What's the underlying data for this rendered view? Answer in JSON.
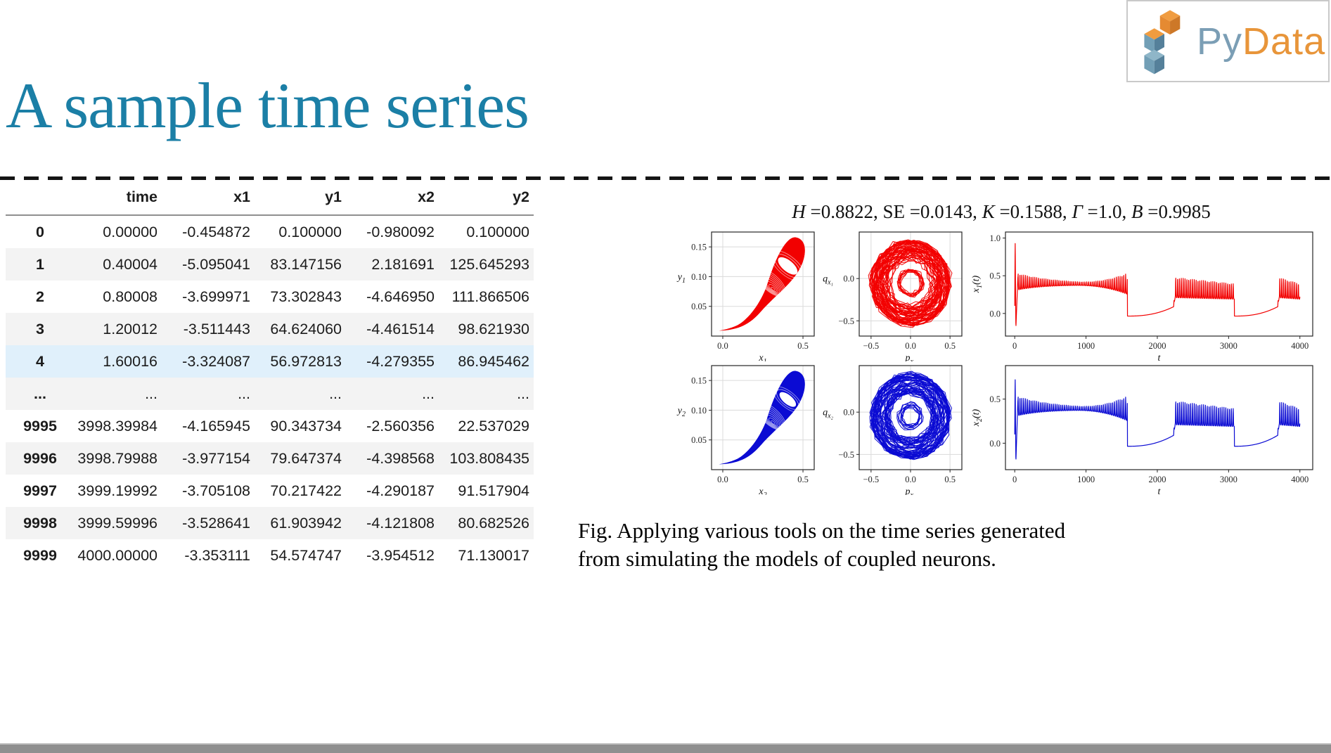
{
  "slide": {
    "title": "A sample time series",
    "logo": {
      "text_py": "Py",
      "text_data": "Data",
      "color_py": "#7b9eb5",
      "color_data": "#e8953a"
    }
  },
  "table": {
    "columns": [
      "",
      "time",
      "x1",
      "y1",
      "x2",
      "y2"
    ],
    "rows": [
      [
        "0",
        "0.00000",
        "-0.454872",
        "0.100000",
        "-0.980092",
        "0.100000"
      ],
      [
        "1",
        "0.40004",
        "-5.095041",
        "83.147156",
        "2.181691",
        "125.645293"
      ],
      [
        "2",
        "0.80008",
        "-3.699971",
        "73.302843",
        "-4.646950",
        "111.866506"
      ],
      [
        "3",
        "1.20012",
        "-3.511443",
        "64.624060",
        "-4.461514",
        "98.621930"
      ],
      [
        "4",
        "1.60016",
        "-3.324087",
        "56.972813",
        "-4.279355",
        "86.945462"
      ],
      [
        "...",
        "...",
        "...",
        "...",
        "...",
        "..."
      ],
      [
        "9995",
        "3998.39984",
        "-4.165945",
        "90.343734",
        "-2.560356",
        "22.537029"
      ],
      [
        "9996",
        "3998.79988",
        "-3.977154",
        "79.647374",
        "-4.398568",
        "103.808435"
      ],
      [
        "9997",
        "3999.19992",
        "-3.705108",
        "70.217422",
        "-4.290187",
        "91.517904"
      ],
      [
        "9998",
        "3999.59996",
        "-3.528641",
        "61.903942",
        "-4.121808",
        "80.682526"
      ],
      [
        "9999",
        "4000.00000",
        "-3.353111",
        "54.574747",
        "-3.954512",
        "71.130017"
      ]
    ],
    "highlighted_row": "4",
    "stripe_color": "#f3f3f3",
    "highlight_color": "#e0f0fb"
  },
  "figure": {
    "title": "H =0.8822, SE =0.0143, K =0.1588, Γ =1.0, B =0.9985",
    "caption_lines": [
      "Fig. Applying various tools on the time series generated",
      "from simulating the models of coupled neurons."
    ]
  },
  "chart_data": [
    {
      "type": "line",
      "kind": "teardrop",
      "name": "phase portrait y1 vs x1",
      "color": "#f20000",
      "xlabel": {
        "text": "x",
        "sub": "1"
      },
      "ylabel": {
        "text": "y",
        "sub": "1"
      },
      "ylabel_y": 0.1,
      "xlim": [
        -0.07,
        0.57
      ],
      "ylim": [
        0.0,
        0.175
      ],
      "grid": true,
      "xticks": [
        {
          "v": 0.0,
          "l": "0.0"
        },
        {
          "v": 0.5,
          "l": "0.5"
        }
      ],
      "yticks": [
        {
          "v": 0.05,
          "l": "0.05"
        },
        {
          "v": 0.1,
          "l": "0.10"
        },
        {
          "v": 0.15,
          "l": "0.15"
        }
      ],
      "shape": {
        "tail_start": [
          -0.025,
          0.009
        ],
        "lobe_top": [
          0.455,
          0.166
        ],
        "hole_center": [
          0.405,
          0.118
        ],
        "hole_rx": 0.034,
        "hole_ry": 0.02
      },
      "description": "dense spiral trajectory filling a tilted teardrop lobe (x≈0.2–0.52, y≈0.04–0.165) with thin tail to (−0.02,0.01) and white limit-cycle hole"
    },
    {
      "type": "line",
      "kind": "annulus",
      "name": "qx1 vs px1",
      "color": "#f20000",
      "xlabel": {
        "text": "p",
        "sub": "x₁"
      },
      "ylabel": {
        "text": "q",
        "sub": "x₁"
      },
      "ylabel_y": 0.0,
      "xlim": [
        -0.65,
        0.65
      ],
      "ylim": [
        -0.68,
        0.55
      ],
      "grid": true,
      "xticks": [
        {
          "v": -0.5,
          "l": "−0.5"
        },
        {
          "v": 0.0,
          "l": "0.0"
        },
        {
          "v": 0.5,
          "l": "0.5"
        }
      ],
      "yticks": [
        {
          "v": 0.0,
          "l": "0.0"
        },
        {
          "v": -0.5,
          "l": "−0.5"
        }
      ],
      "shape": {
        "center": [
          0,
          -0.05
        ],
        "outer_radius": [
          0.26,
          0.5
        ],
        "inner_radius": [
          0.1,
          0.17
        ],
        "loops_outer": 52,
        "loops_inner": 9,
        "seed": 7
      },
      "description": "dense jagged quasi-periodic loops forming a filled annulus of outer radius ≈0.5 with a small inner ring ≈0.1–0.17 around a white center"
    },
    {
      "type": "line",
      "kind": "bursts",
      "name": "x1(t)",
      "color": "#f20000",
      "xlabel": {
        "text": "t"
      },
      "ylabel": {
        "text": "x",
        "sub": "1",
        "after": "(t)"
      },
      "ylabel_rot": true,
      "xlim": [
        -130,
        4180
      ],
      "ylim": [
        -0.3,
        1.08
      ],
      "grid": false,
      "xticks": [
        {
          "v": 0,
          "l": "0"
        },
        {
          "v": 1000,
          "l": "1000"
        },
        {
          "v": 2000,
          "l": "2000"
        },
        {
          "v": 3000,
          "l": "3000"
        },
        {
          "v": 4000,
          "l": "4000"
        }
      ],
      "yticks": [
        {
          "v": 0.0,
          "l": "0.0"
        },
        {
          "v": 0.5,
          "l": "0.5"
        },
        {
          "v": 1.0,
          "l": "1.0"
        }
      ],
      "pattern": {
        "initial_peak": 1.0,
        "initial_dip": -0.2,
        "burst_intervals": [
          [
            45,
            1580
          ],
          [
            2230,
            3080
          ],
          [
            3690,
            4000
          ]
        ],
        "quiet_intervals": [
          [
            1580,
            2230
          ],
          [
            3080,
            3690
          ]
        ],
        "quiet_level": -0.035,
        "quiet_rise_to": 0.09,
        "burst_mean": 0.4,
        "period": 26
      },
      "description": "spike to 1.0 near t=0 then oscillation band ≈0.38–0.5 with bursting episodes separated by quiet stretches near 0 at t≈1580–2230 and 3080–3690"
    },
    {
      "type": "line",
      "kind": "teardrop",
      "name": "phase portrait y2 vs x2",
      "color": "#0b0bd3",
      "xlabel": {
        "text": "x",
        "sub": "2"
      },
      "ylabel": {
        "text": "y",
        "sub": "2"
      },
      "ylabel_y": 0.1,
      "xlim": [
        -0.07,
        0.57
      ],
      "ylim": [
        0.0,
        0.175
      ],
      "grid": true,
      "xticks": [
        {
          "v": 0.0,
          "l": "0.0"
        },
        {
          "v": 0.5,
          "l": "0.5"
        }
      ],
      "yticks": [
        {
          "v": 0.05,
          "l": "0.05"
        },
        {
          "v": 0.1,
          "l": "0.10"
        },
        {
          "v": 0.15,
          "l": "0.15"
        }
      ],
      "shape": {
        "tail_start": [
          -0.025,
          0.009
        ],
        "lobe_top": [
          0.455,
          0.166
        ],
        "hole_center": [
          0.405,
          0.118
        ],
        "hole_rx": 0.028,
        "hole_ry": 0.017
      },
      "description": "same teardrop phase portrait as top row but for x2, drawn in blue"
    },
    {
      "type": "line",
      "kind": "annulus",
      "name": "qx2 vs px2",
      "color": "#0b0bd3",
      "xlabel": {
        "text": "p",
        "sub": "x₂"
      },
      "ylabel": {
        "text": "q",
        "sub": "x₂"
      },
      "ylabel_y": 0.0,
      "xlim": [
        -0.65,
        0.65
      ],
      "ylim": [
        -0.68,
        0.55
      ],
      "grid": true,
      "xticks": [
        {
          "v": -0.5,
          "l": "−0.5"
        },
        {
          "v": 0.0,
          "l": "0.0"
        },
        {
          "v": 0.5,
          "l": "0.5"
        }
      ],
      "yticks": [
        {
          "v": 0.0,
          "l": "0.0"
        },
        {
          "v": -0.5,
          "l": "−0.5"
        }
      ],
      "shape": {
        "center": [
          0,
          -0.05
        ],
        "outer_radius": [
          0.26,
          0.5
        ],
        "inner_radius": [
          0.1,
          0.17
        ],
        "loops_outer": 52,
        "loops_inner": 9,
        "seed": 13
      },
      "description": "same dense annulus as top row but for px2/qx2, drawn in blue"
    },
    {
      "type": "line",
      "kind": "bursts",
      "name": "x2(t)",
      "color": "#0b0bd3",
      "xlabel": {
        "text": "t"
      },
      "ylabel": {
        "text": "x",
        "sub": "2",
        "after": "(t)"
      },
      "ylabel_rot": true,
      "xlim": [
        -130,
        4180
      ],
      "ylim": [
        -0.3,
        0.88
      ],
      "grid": false,
      "xticks": [
        {
          "v": 0,
          "l": "0"
        },
        {
          "v": 1000,
          "l": "1000"
        },
        {
          "v": 2000,
          "l": "2000"
        },
        {
          "v": 3000,
          "l": "3000"
        },
        {
          "v": 4000,
          "l": "4000"
        }
      ],
      "yticks": [
        {
          "v": 0.0,
          "l": "0.0"
        },
        {
          "v": 0.5,
          "l": "0.5"
        }
      ],
      "pattern": {
        "initial_peak": 0.78,
        "initial_dip": -0.22,
        "burst_intervals": [
          [
            45,
            1580
          ],
          [
            2230,
            3080
          ],
          [
            3690,
            4000
          ]
        ],
        "quiet_intervals": [
          [
            1580,
            2230
          ],
          [
            3080,
            3690
          ]
        ],
        "quiet_level": -0.035,
        "quiet_rise_to": 0.09,
        "burst_mean": 0.4,
        "period": 26
      },
      "description": "same bursting time series pattern as x1(t) with initial spike to ≈0.75, drawn in blue"
    }
  ]
}
